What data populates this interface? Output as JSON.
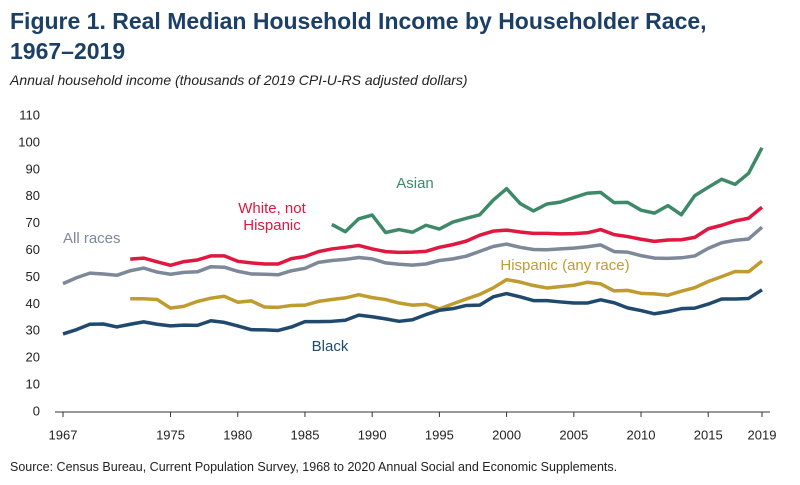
{
  "chart_data": {
    "type": "line",
    "title": "Figure 1. Real Median Household Income by Householder Race, 1967–2019",
    "subtitle": "Annual household income (thousands of 2019 CPI-U-RS adjusted dollars)",
    "source": "Source: Census Bureau, Current Population Survey, 1968 to 2020 Annual Social and Economic Supplements.",
    "x": [
      1967,
      1968,
      1969,
      1970,
      1971,
      1972,
      1973,
      1974,
      1975,
      1976,
      1977,
      1978,
      1979,
      1980,
      1981,
      1982,
      1983,
      1984,
      1985,
      1986,
      1987,
      1988,
      1989,
      1990,
      1991,
      1992,
      1993,
      1994,
      1995,
      1996,
      1997,
      1998,
      1999,
      2000,
      2001,
      2002,
      2003,
      2004,
      2005,
      2006,
      2007,
      2008,
      2009,
      2010,
      2011,
      2012,
      2013,
      2014,
      2015,
      2016,
      2017,
      2018,
      2019
    ],
    "xlim": [
      1967,
      2019
    ],
    "xticks": [
      1967,
      1975,
      1980,
      1985,
      1990,
      1995,
      2000,
      2005,
      2010,
      2015,
      2019
    ],
    "ylim": [
      0,
      110
    ],
    "yticks": [
      0,
      10,
      20,
      30,
      40,
      50,
      60,
      70,
      80,
      90,
      100,
      110
    ],
    "series": [
      {
        "name": "All races",
        "color": "#7d8899",
        "values": [
          47.7,
          49.9,
          51.6,
          51.3,
          50.8,
          52.5,
          53.5,
          52.0,
          51.2,
          51.9,
          52.1,
          54.0,
          53.8,
          52.3,
          51.3,
          51.2,
          51.0,
          52.5,
          53.4,
          55.6,
          56.3,
          56.7,
          57.4,
          56.9,
          55.4,
          54.9,
          54.6,
          55.0,
          56.3,
          56.9,
          57.9,
          59.7,
          61.5,
          62.4,
          61.2,
          60.4,
          60.3,
          60.6,
          60.9,
          61.4,
          62.1,
          59.6,
          59.4,
          58.1,
          57.2,
          57.1,
          57.3,
          58.0,
          60.8,
          62.9,
          63.8,
          64.3,
          68.7
        ]
      },
      {
        "name": "White, not Hispanic",
        "color": "#e0173f",
        "values": [
          null,
          null,
          null,
          null,
          null,
          56.8,
          57.2,
          55.8,
          54.5,
          55.9,
          56.5,
          58.0,
          58.0,
          56.0,
          55.4,
          55.0,
          55.0,
          57.0,
          57.8,
          59.6,
          60.6,
          61.2,
          61.9,
          60.6,
          59.6,
          59.3,
          59.4,
          59.7,
          61.2,
          62.2,
          63.5,
          65.7,
          67.2,
          67.6,
          66.9,
          66.4,
          66.4,
          66.2,
          66.3,
          66.6,
          67.8,
          65.9,
          65.2,
          64.2,
          63.4,
          63.9,
          64.0,
          64.9,
          68.1,
          69.4,
          71.0,
          72.0,
          76.1
        ]
      },
      {
        "name": "Asian",
        "color": "#3e8a68",
        "values": [
          null,
          null,
          null,
          null,
          null,
          null,
          null,
          null,
          null,
          null,
          null,
          null,
          null,
          null,
          null,
          null,
          null,
          null,
          null,
          null,
          69.7,
          67.0,
          71.8,
          73.2,
          66.7,
          67.8,
          66.8,
          69.4,
          68.0,
          70.6,
          72.0,
          73.3,
          78.7,
          83.0,
          77.5,
          74.7,
          77.3,
          78.0,
          79.7,
          81.3,
          81.6,
          77.8,
          77.9,
          75.0,
          73.9,
          76.7,
          73.3,
          80.4,
          83.5,
          86.5,
          84.6,
          88.7,
          98.2
        ]
      },
      {
        "name": "Hispanic (any race)",
        "color": "#bf9b30",
        "values": [
          null,
          null,
          null,
          null,
          null,
          42.1,
          42.1,
          41.8,
          38.6,
          39.3,
          41.1,
          42.3,
          43.0,
          40.8,
          41.3,
          39.0,
          38.9,
          39.6,
          39.7,
          41.1,
          41.8,
          42.4,
          43.6,
          42.5,
          41.8,
          40.5,
          39.7,
          40.0,
          38.3,
          40.2,
          42.0,
          43.7,
          46.1,
          49.2,
          48.3,
          47.0,
          46.1,
          46.6,
          47.1,
          48.2,
          47.6,
          45.0,
          45.2,
          44.1,
          43.9,
          43.4,
          44.9,
          46.2,
          48.5,
          50.3,
          52.2,
          52.1,
          56.1
        ]
      },
      {
        "name": "Black",
        "color": "#1f4a6e",
        "values": [
          29.0,
          30.6,
          32.6,
          32.7,
          31.6,
          32.6,
          33.5,
          32.6,
          32.0,
          32.3,
          32.2,
          33.9,
          33.3,
          32.0,
          30.6,
          30.5,
          30.3,
          31.6,
          33.6,
          33.6,
          33.7,
          34.1,
          36.0,
          35.4,
          34.6,
          33.7,
          34.3,
          36.2,
          37.8,
          38.4,
          39.6,
          39.7,
          42.8,
          44.0,
          42.8,
          41.4,
          41.4,
          40.9,
          40.5,
          40.5,
          41.7,
          40.6,
          38.7,
          37.7,
          36.5,
          37.3,
          38.4,
          38.6,
          40.1,
          42.0,
          42.0,
          42.2,
          45.4
        ]
      }
    ]
  }
}
